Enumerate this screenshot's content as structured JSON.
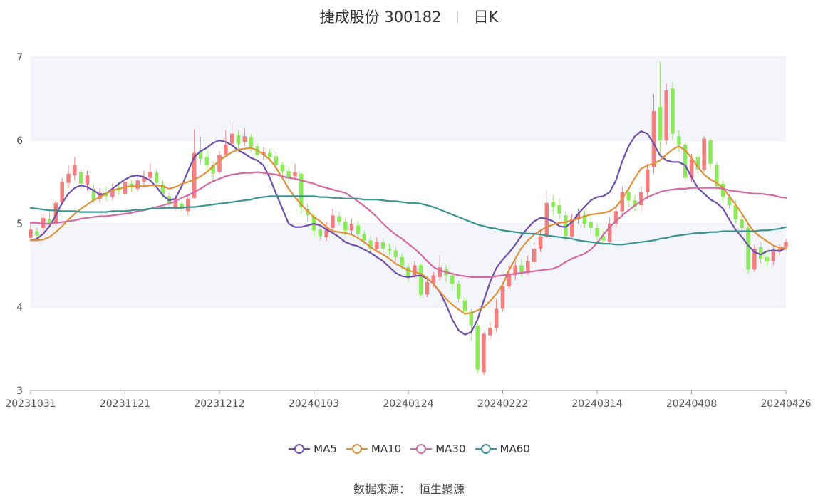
{
  "title": {
    "stock": "捷成股份 300182",
    "period": "日K"
  },
  "source": {
    "label": "数据来源：",
    "provider": "恒生聚源"
  },
  "colors": {
    "up": "#f47d7d",
    "down": "#8be95a",
    "grid": "#e6e8ee",
    "band": "#f4f5fa",
    "axis": "#555555"
  },
  "chart_data": {
    "type": "line",
    "subtype": "candlestick-with-moving-averages",
    "ylim": [
      3,
      7
    ],
    "yticks": [
      3,
      4,
      5,
      6,
      7
    ],
    "grid": true,
    "legend_position": "bottom-center",
    "x_tick_labels": [
      "20231031",
      "20231121",
      "20231212",
      "20240103",
      "20240124",
      "20240222",
      "20240314",
      "20240408",
      "20240426"
    ],
    "x_tick_indices": [
      0,
      15,
      30,
      45,
      60,
      75,
      90,
      105,
      120
    ],
    "series": [
      {
        "name": "MA5",
        "color": "#6e4fad",
        "values": [
          4.8,
          4.82,
          4.88,
          4.97,
          5.1,
          5.25,
          5.36,
          5.43,
          5.46,
          5.44,
          5.4,
          5.35,
          5.36,
          5.42,
          5.48,
          5.53,
          5.57,
          5.58,
          5.56,
          5.52,
          5.44,
          5.34,
          5.28,
          5.3,
          5.45,
          5.63,
          5.8,
          5.87,
          5.91,
          5.97,
          6.0,
          5.98,
          5.94,
          5.88,
          5.84,
          5.79,
          5.76,
          5.7,
          5.55,
          5.36,
          5.18,
          5.0,
          4.96,
          4.96,
          4.98,
          5.0,
          4.98,
          4.93,
          4.89,
          4.84,
          4.78,
          4.75,
          4.73,
          4.69,
          4.65,
          4.6,
          4.55,
          4.48,
          4.41,
          4.37,
          4.36,
          4.37,
          4.38,
          4.34,
          4.28,
          4.18,
          4.03,
          3.85,
          3.72,
          3.67,
          3.7,
          3.85,
          4.08,
          4.3,
          4.47,
          4.57,
          4.65,
          4.75,
          4.86,
          4.95,
          5.03,
          5.07,
          5.06,
          5.03,
          4.97,
          4.96,
          5.02,
          5.12,
          5.2,
          5.28,
          5.32,
          5.33,
          5.38,
          5.52,
          5.75,
          5.93,
          6.05,
          6.11,
          6.08,
          5.96,
          5.82,
          5.76,
          5.74,
          5.74,
          5.7,
          5.56,
          5.43,
          5.36,
          5.29,
          5.25,
          5.18,
          5.05,
          4.93,
          4.84,
          4.74,
          4.66,
          4.63,
          4.67,
          4.68,
          4.67,
          4.71
        ]
      },
      {
        "name": "MA10",
        "color": "#e0913a",
        "values": [
          4.8,
          4.8,
          4.81,
          4.84,
          4.9,
          4.97,
          5.05,
          5.12,
          5.18,
          5.23,
          5.28,
          5.32,
          5.36,
          5.4,
          5.42,
          5.44,
          5.45,
          5.45,
          5.45,
          5.46,
          5.46,
          5.45,
          5.42,
          5.44,
          5.48,
          5.5,
          5.53,
          5.57,
          5.62,
          5.69,
          5.76,
          5.81,
          5.86,
          5.89,
          5.9,
          5.91,
          5.88,
          5.83,
          5.77,
          5.67,
          5.55,
          5.42,
          5.32,
          5.23,
          5.15,
          5.08,
          5.03,
          4.96,
          4.91,
          4.9,
          4.89,
          4.87,
          4.83,
          4.78,
          4.72,
          4.67,
          4.63,
          4.58,
          4.52,
          4.48,
          4.44,
          4.42,
          4.4,
          4.35,
          4.28,
          4.19,
          4.1,
          4.03,
          3.97,
          3.92,
          3.93,
          3.96,
          4.0,
          4.07,
          4.16,
          4.27,
          4.44,
          4.58,
          4.71,
          4.8,
          4.87,
          4.92,
          4.96,
          4.99,
          5.01,
          5.02,
          5.04,
          5.06,
          5.09,
          5.11,
          5.12,
          5.13,
          5.15,
          5.2,
          5.3,
          5.42,
          5.55,
          5.66,
          5.7,
          5.72,
          5.76,
          5.83,
          5.89,
          5.93,
          5.88,
          5.79,
          5.68,
          5.59,
          5.53,
          5.49,
          5.43,
          5.33,
          5.23,
          5.12,
          5.0,
          4.9,
          4.84,
          4.79,
          4.74,
          4.71,
          4.71
        ]
      },
      {
        "name": "MA30",
        "color": "#d469a4",
        "values": [
          5.01,
          5.01,
          5.0,
          5.0,
          5.01,
          5.02,
          5.03,
          5.04,
          5.06,
          5.07,
          5.08,
          5.09,
          5.09,
          5.1,
          5.11,
          5.12,
          5.13,
          5.15,
          5.16,
          5.18,
          5.2,
          5.22,
          5.24,
          5.27,
          5.31,
          5.34,
          5.38,
          5.42,
          5.47,
          5.51,
          5.54,
          5.57,
          5.59,
          5.6,
          5.61,
          5.61,
          5.62,
          5.61,
          5.6,
          5.59,
          5.57,
          5.55,
          5.54,
          5.52,
          5.5,
          5.48,
          5.45,
          5.43,
          5.41,
          5.39,
          5.37,
          5.32,
          5.27,
          5.21,
          5.15,
          5.08,
          5.0,
          4.93,
          4.87,
          4.82,
          4.76,
          4.7,
          4.63,
          4.55,
          4.48,
          4.44,
          4.42,
          4.4,
          4.38,
          4.37,
          4.36,
          4.36,
          4.36,
          4.36,
          4.37,
          4.38,
          4.39,
          4.4,
          4.41,
          4.42,
          4.43,
          4.44,
          4.45,
          4.46,
          4.49,
          4.54,
          4.58,
          4.61,
          4.64,
          4.69,
          4.77,
          4.87,
          4.96,
          5.03,
          5.1,
          5.16,
          5.22,
          5.27,
          5.32,
          5.35,
          5.38,
          5.4,
          5.41,
          5.42,
          5.42,
          5.43,
          5.43,
          5.43,
          5.43,
          5.43,
          5.42,
          5.4,
          5.39,
          5.38,
          5.37,
          5.36,
          5.36,
          5.35,
          5.34,
          5.32,
          5.31
        ]
      },
      {
        "name": "MA60",
        "color": "#3b9494",
        "values": [
          5.19,
          5.18,
          5.17,
          5.16,
          5.16,
          5.15,
          5.15,
          5.15,
          5.14,
          5.14,
          5.14,
          5.14,
          5.14,
          5.15,
          5.15,
          5.15,
          5.16,
          5.17,
          5.17,
          5.18,
          5.18,
          5.19,
          5.19,
          5.19,
          5.19,
          5.2,
          5.2,
          5.21,
          5.22,
          5.23,
          5.24,
          5.25,
          5.26,
          5.27,
          5.28,
          5.29,
          5.31,
          5.32,
          5.33,
          5.33,
          5.33,
          5.33,
          5.33,
          5.33,
          5.33,
          5.33,
          5.32,
          5.32,
          5.31,
          5.31,
          5.3,
          5.3,
          5.3,
          5.29,
          5.29,
          5.29,
          5.28,
          5.27,
          5.27,
          5.26,
          5.25,
          5.25,
          5.24,
          5.22,
          5.2,
          5.17,
          5.14,
          5.11,
          5.08,
          5.05,
          5.02,
          4.99,
          4.97,
          4.95,
          4.94,
          4.92,
          4.91,
          4.9,
          4.89,
          4.88,
          4.88,
          4.87,
          4.86,
          4.85,
          4.84,
          4.83,
          4.82,
          4.8,
          4.79,
          4.78,
          4.77,
          4.76,
          4.76,
          4.75,
          4.75,
          4.76,
          4.77,
          4.78,
          4.79,
          4.8,
          4.82,
          4.83,
          4.85,
          4.86,
          4.87,
          4.88,
          4.89,
          4.89,
          4.9,
          4.9,
          4.91,
          4.91,
          4.91,
          4.91,
          4.91,
          4.91,
          4.92,
          4.92,
          4.93,
          4.94,
          4.96
        ]
      }
    ],
    "candles": [
      [
        4.83,
        4.93,
        5.0,
        4.79
      ],
      [
        4.91,
        4.86,
        4.96,
        4.82
      ],
      [
        4.95,
        5.07,
        5.12,
        4.9
      ],
      [
        5.06,
        5.0,
        5.14,
        4.95
      ],
      [
        5.0,
        5.25,
        5.28,
        4.97
      ],
      [
        5.26,
        5.5,
        5.55,
        5.22
      ],
      [
        5.49,
        5.6,
        5.7,
        5.42
      ],
      [
        5.58,
        5.7,
        5.8,
        5.52
      ],
      [
        5.62,
        5.48,
        5.65,
        5.42
      ],
      [
        5.47,
        5.58,
        5.64,
        5.4
      ],
      [
        5.42,
        5.28,
        5.47,
        5.25
      ],
      [
        5.3,
        5.37,
        5.43,
        5.25
      ],
      [
        5.37,
        5.33,
        5.44,
        5.27
      ],
      [
        5.32,
        5.42,
        5.48,
        5.28
      ],
      [
        5.43,
        5.4,
        5.5,
        5.35
      ],
      [
        5.36,
        5.5,
        5.56,
        5.33
      ],
      [
        5.48,
        5.44,
        5.52,
        5.38
      ],
      [
        5.42,
        5.52,
        5.58,
        5.38
      ],
      [
        5.5,
        5.56,
        5.64,
        5.45
      ],
      [
        5.55,
        5.62,
        5.72,
        5.5
      ],
      [
        5.61,
        5.49,
        5.66,
        5.44
      ],
      [
        5.47,
        5.36,
        5.52,
        5.31
      ],
      [
        5.33,
        5.24,
        5.37,
        5.19
      ],
      [
        5.2,
        5.29,
        5.34,
        5.16
      ],
      [
        5.24,
        5.19,
        5.27,
        5.14
      ],
      [
        5.15,
        5.3,
        5.34,
        5.1
      ],
      [
        5.31,
        5.85,
        6.13,
        5.3
      ],
      [
        5.88,
        5.78,
        6.05,
        5.72
      ],
      [
        5.8,
        5.7,
        5.9,
        5.62
      ],
      [
        5.7,
        5.6,
        5.75,
        5.52
      ],
      [
        5.62,
        5.82,
        5.87,
        5.6
      ],
      [
        5.83,
        5.95,
        6.12,
        5.8
      ],
      [
        5.96,
        6.08,
        6.22,
        5.92
      ],
      [
        6.06,
        5.96,
        6.12,
        5.9
      ],
      [
        5.98,
        6.05,
        6.15,
        5.93
      ],
      [
        6.04,
        5.92,
        6.08,
        5.86
      ],
      [
        5.93,
        5.82,
        5.97,
        5.78
      ],
      [
        5.83,
        5.86,
        5.92,
        5.77
      ],
      [
        5.85,
        5.8,
        5.9,
        5.74
      ],
      [
        5.81,
        5.7,
        5.85,
        5.65
      ],
      [
        5.71,
        5.63,
        5.74,
        5.58
      ],
      [
        5.63,
        5.55,
        5.68,
        5.48
      ],
      [
        5.57,
        5.62,
        5.72,
        5.52
      ],
      [
        5.6,
        5.2,
        5.62,
        5.12
      ],
      [
        5.18,
        5.1,
        5.24,
        5.02
      ],
      [
        5.09,
        4.92,
        5.12,
        4.85
      ],
      [
        4.93,
        4.85,
        4.98,
        4.8
      ],
      [
        4.84,
        4.95,
        5.02,
        4.79
      ],
      [
        4.95,
        5.1,
        5.18,
        4.92
      ],
      [
        5.09,
        5.02,
        5.14,
        4.98
      ],
      [
        5.02,
        4.92,
        5.06,
        4.86
      ],
      [
        4.92,
        5.0,
        5.06,
        4.88
      ],
      [
        4.98,
        4.88,
        5.03,
        4.83
      ],
      [
        4.88,
        4.8,
        4.92,
        4.75
      ],
      [
        4.8,
        4.7,
        4.85,
        4.65
      ],
      [
        4.7,
        4.78,
        4.84,
        4.66
      ],
      [
        4.78,
        4.7,
        4.82,
        4.65
      ],
      [
        4.7,
        4.68,
        4.76,
        4.62
      ],
      [
        4.68,
        4.6,
        4.72,
        4.55
      ],
      [
        4.6,
        4.5,
        4.64,
        4.45
      ],
      [
        4.48,
        4.35,
        4.52,
        4.3
      ],
      [
        4.38,
        4.5,
        4.55,
        4.35
      ],
      [
        4.5,
        4.15,
        4.52,
        4.12
      ],
      [
        4.15,
        4.3,
        4.35,
        4.12
      ],
      [
        4.28,
        4.38,
        4.42,
        4.24
      ],
      [
        4.36,
        4.48,
        4.62,
        4.32
      ],
      [
        4.46,
        4.38,
        4.5,
        4.3
      ],
      [
        4.38,
        4.28,
        4.42,
        4.2
      ],
      [
        4.28,
        4.1,
        4.32,
        4.05
      ],
      [
        4.08,
        3.95,
        4.12,
        3.9
      ],
      [
        3.94,
        3.78,
        3.98,
        3.6
      ],
      [
        3.78,
        3.25,
        3.8,
        3.2
      ],
      [
        3.22,
        3.68,
        3.7,
        3.18
      ],
      [
        3.66,
        3.75,
        3.82,
        3.6
      ],
      [
        3.75,
        3.98,
        4.1,
        3.7
      ],
      [
        3.98,
        4.25,
        4.3,
        3.95
      ],
      [
        4.25,
        4.4,
        4.5,
        4.22
      ],
      [
        4.38,
        4.5,
        4.58,
        4.32
      ],
      [
        4.5,
        4.42,
        4.58,
        4.36
      ],
      [
        4.42,
        4.55,
        4.62,
        4.38
      ],
      [
        4.54,
        4.7,
        4.78,
        4.5
      ],
      [
        4.7,
        4.85,
        4.92,
        4.66
      ],
      [
        4.84,
        5.25,
        5.4,
        4.82
      ],
      [
        5.26,
        5.2,
        5.35,
        5.1
      ],
      [
        5.22,
        5.12,
        5.3,
        5.05
      ],
      [
        5.1,
        4.85,
        5.15,
        4.8
      ],
      [
        4.85,
        5.05,
        5.12,
        4.82
      ],
      [
        5.05,
        5.12,
        5.18,
        5.0
      ],
      [
        5.1,
        5.0,
        5.15,
        4.95
      ],
      [
        5.02,
        4.95,
        5.08,
        4.88
      ],
      [
        4.95,
        4.85,
        5.0,
        4.78
      ],
      [
        4.85,
        4.8,
        4.92,
        4.74
      ],
      [
        4.78,
        5.0,
        5.08,
        4.75
      ],
      [
        5.0,
        5.15,
        5.2,
        4.95
      ],
      [
        5.15,
        5.38,
        5.45,
        5.1
      ],
      [
        5.38,
        5.28,
        5.42,
        5.2
      ],
      [
        5.28,
        5.2,
        5.35,
        5.15
      ],
      [
        5.22,
        5.38,
        5.45,
        5.15
      ],
      [
        5.38,
        5.65,
        5.72,
        5.3
      ],
      [
        5.68,
        6.35,
        6.55,
        5.6
      ],
      [
        6.4,
        6.0,
        6.95,
        5.85
      ],
      [
        6.0,
        6.6,
        6.68,
        5.95
      ],
      [
        6.62,
        6.08,
        6.7,
        6.0
      ],
      [
        6.05,
        5.95,
        6.12,
        5.86
      ],
      [
        5.95,
        5.55,
        5.98,
        5.5
      ],
      [
        5.55,
        5.78,
        5.84,
        5.5
      ],
      [
        5.8,
        5.65,
        5.88,
        5.6
      ],
      [
        5.65,
        6.02,
        6.05,
        5.62
      ],
      [
        6.0,
        5.72,
        6.03,
        5.66
      ],
      [
        5.7,
        5.45,
        5.74,
        5.4
      ],
      [
        5.48,
        5.32,
        5.52,
        5.25
      ],
      [
        5.32,
        5.22,
        5.36,
        5.18
      ],
      [
        5.22,
        5.05,
        5.28,
        5.0
      ],
      [
        5.05,
        4.95,
        5.1,
        4.88
      ],
      [
        4.95,
        4.45,
        5.0,
        4.4
      ],
      [
        4.45,
        4.7,
        4.75,
        4.42
      ],
      [
        4.72,
        4.58,
        4.78,
        4.52
      ],
      [
        4.6,
        4.55,
        4.66,
        4.48
      ],
      [
        4.55,
        4.68,
        4.72,
        4.5
      ],
      [
        4.68,
        4.7,
        4.75,
        4.62
      ],
      [
        4.72,
        4.78,
        4.82,
        4.68
      ]
    ]
  }
}
